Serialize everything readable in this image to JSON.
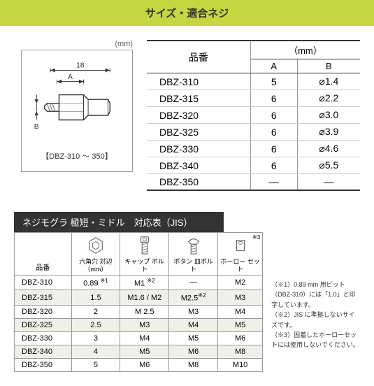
{
  "header": "サイズ・適合ネジ",
  "diagram": {
    "unit_label": "(mm)",
    "length_label": "18",
    "dim_a": "A",
    "dim_b": "B",
    "caption": "【DBZ-310 ～ 350】"
  },
  "spec_table": {
    "headers": {
      "part": "品番",
      "mm": "（mm）",
      "a": "A",
      "b": "B"
    },
    "rows": [
      {
        "part": "DBZ-310",
        "a": "5",
        "b": "⌀1.4"
      },
      {
        "part": "DBZ-315",
        "a": "6",
        "b": "⌀2.2"
      },
      {
        "part": "DBZ-320",
        "a": "6",
        "b": "⌀3.0"
      },
      {
        "part": "DBZ-325",
        "a": "6",
        "b": "⌀3.9"
      },
      {
        "part": "DBZ-330",
        "a": "6",
        "b": "⌀4.6"
      },
      {
        "part": "DBZ-340",
        "a": "6",
        "b": "⌀5.5"
      },
      {
        "part": "DBZ-350",
        "a": "—",
        "b": "—"
      }
    ]
  },
  "section_title": "ネジモグラ 極短・ミドル　対応表（JIS）",
  "compat_table": {
    "headers": {
      "part": "品番",
      "hex": "六角穴\n対辺（mm）",
      "cap": "キャップ\nボルト",
      "button": "ボタン\n皿ボルト",
      "hollow": "ホーロー\nセット",
      "ref1": "※1",
      "ref2": "※2",
      "ref3": "※3"
    },
    "rows": [
      {
        "part": "DBZ-310",
        "hex": "0.89",
        "hex_ref": "※1",
        "cap": "M1",
        "cap_ref": "※2",
        "button": "—",
        "hollow": "M2"
      },
      {
        "part": "DBZ-315",
        "hex": "1.5",
        "cap": "M1.6 / M2",
        "button": "M2.5",
        "button_ref": "※2",
        "hollow": "M3"
      },
      {
        "part": "DBZ-320",
        "hex": "2",
        "cap": "M 2.5",
        "button": "M3",
        "hollow": "M4"
      },
      {
        "part": "DBZ-325",
        "hex": "2.5",
        "cap": "M3",
        "button": "M4",
        "hollow": "M5"
      },
      {
        "part": "DBZ-330",
        "hex": "3",
        "cap": "M4",
        "button": "M5",
        "hollow": "M6"
      },
      {
        "part": "DBZ-340",
        "hex": "4",
        "cap": "M5",
        "button": "M6",
        "hollow": "M8"
      },
      {
        "part": "DBZ-350",
        "hex": "5",
        "cap": "M6",
        "button": "M8",
        "hollow": "M10"
      }
    ]
  },
  "notes": {
    "n1": "（※1）0.89 mm 用ビット（DBZ-310）には「1.0」と印字しています。",
    "n2": "（※2）JIS に準拠しないサイズです。",
    "n3": "（※3）固着したホーローセットには使用しないでください。"
  },
  "colors": {
    "header_bg": "#c5d641",
    "section_bg": "#333333",
    "border": "#999999",
    "alt_row": "#f0f0ea"
  }
}
